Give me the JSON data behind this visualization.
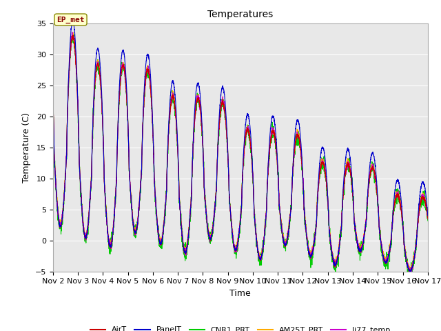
{
  "title": "Temperatures",
  "xlabel": "Time",
  "ylabel": "Temperature (C)",
  "ylim": [
    -5,
    35
  ],
  "xlim": [
    0,
    15
  ],
  "xtick_labels": [
    "Nov 2",
    "Nov 3",
    "Nov 4",
    "Nov 5",
    "Nov 6",
    "Nov 7",
    "Nov 8",
    "Nov 9",
    "Nov 10",
    "Nov 11",
    "Nov 12",
    "Nov 13",
    "Nov 14",
    "Nov 15",
    "Nov 16",
    "Nov 17"
  ],
  "xtick_positions": [
    0,
    1,
    2,
    3,
    4,
    5,
    6,
    7,
    8,
    9,
    10,
    11,
    12,
    13,
    14,
    15
  ],
  "series": {
    "AirT": {
      "color": "#cc0000",
      "lw": 0.8
    },
    "PanelT": {
      "color": "#0000cc",
      "lw": 0.8
    },
    "CNR1_PRT": {
      "color": "#00cc00",
      "lw": 0.8
    },
    "AM25T_PRT": {
      "color": "#ffaa00",
      "lw": 0.8
    },
    "li77_temp": {
      "color": "#cc00cc",
      "lw": 0.8
    }
  },
  "legend_labels": [
    "AirT",
    "PanelT",
    "CNR1_PRT",
    "AM25T_PRT",
    "li77_temp"
  ],
  "legend_colors": [
    "#cc0000",
    "#0000cc",
    "#00cc00",
    "#ffaa00",
    "#cc00cc"
  ],
  "ep_met_text": "EP_met",
  "ep_met_fgcolor": "#880000",
  "ep_met_bgcolor": "#ffffcc",
  "ep_met_edgecolor": "#888800",
  "background_color": "#e8e8e8",
  "title_fontsize": 10,
  "axis_fontsize": 9,
  "tick_fontsize": 8,
  "yticks": [
    -5,
    0,
    5,
    10,
    15,
    20,
    25,
    30,
    35
  ],
  "figsize": [
    6.4,
    4.8
  ],
  "dpi": 100
}
